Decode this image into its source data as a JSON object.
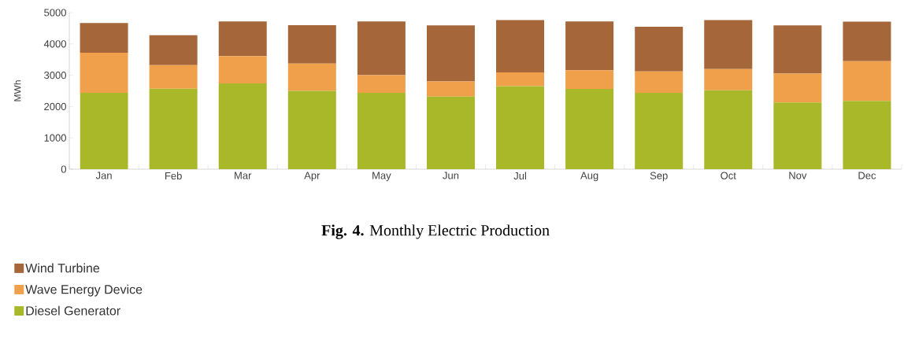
{
  "chart_data": {
    "type": "bar",
    "title": "**Fig. 4.** Monthly Electric Production",
    "ylabel": "MWh",
    "categories": [
      "Jan",
      "Feb",
      "Mar",
      "Apr",
      "May",
      "Jun",
      "Jul",
      "Aug",
      "Sep",
      "Oct",
      "Nov",
      "Dec"
    ],
    "stacked": true,
    "series": [
      {
        "name": "Diesel Generator",
        "color": "#a9b828",
        "values": [
          2440,
          2570,
          2740,
          2500,
          2440,
          2320,
          2650,
          2560,
          2440,
          2520,
          2130,
          2180
        ]
      },
      {
        "name": "Wave Energy Device",
        "color": "#f0a04b",
        "values": [
          1280,
          750,
          870,
          870,
          560,
          480,
          440,
          600,
          680,
          680,
          920,
          1270
        ]
      },
      {
        "name": "Wind Turbine",
        "color": "#a5663a",
        "values": [
          950,
          960,
          1110,
          1230,
          1720,
          1790,
          1670,
          1560,
          1430,
          1560,
          1540,
          1260
        ]
      }
    ],
    "ylim": [
      0,
      5000
    ],
    "yticks": [
      0,
      1000,
      2000,
      3000,
      4000,
      5000
    ],
    "legend": "bottom"
  }
}
